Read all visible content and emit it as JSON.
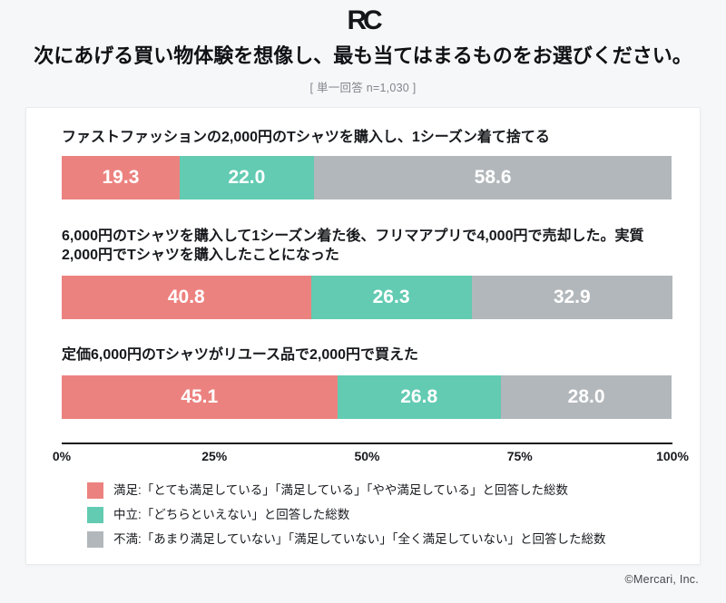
{
  "header": {
    "logo_text": "RC",
    "title": "次にあげる買い物体験を想像し、最も当てはまるものをお選びください。",
    "subtitle": "[ 単一回答 n=1,030 ]"
  },
  "chart_data": {
    "type": "bar",
    "variant": "horizontal-stacked-percentage",
    "categories": [
      "ファストファッションの2,000円のTシャツを購入し、1シーズン着て捨てる",
      "6,000円のTシャツを購入して1シーズン着た後、フリマアプリで4,000円で売却した。実質2,000円でTシャツを購入したことになった",
      "定価6,000円のTシャツがリユース品で2,000円で買えた"
    ],
    "series": [
      {
        "name": "満足",
        "color": "#ec827f",
        "values": [
          19.3,
          40.8,
          45.1
        ],
        "labels": [
          "19.3",
          "40.8",
          "45.1"
        ]
      },
      {
        "name": "中立",
        "color": "#62cbb2",
        "values": [
          22.0,
          26.3,
          26.8
        ],
        "labels": [
          "22.0",
          "26.3",
          "26.8"
        ]
      },
      {
        "name": "不満",
        "color": "#b2b7bb",
        "values": [
          58.6,
          32.9,
          28.0
        ],
        "labels": [
          "58.6",
          "32.9",
          "28.0"
        ]
      }
    ],
    "xlim": [
      0,
      100
    ],
    "x_ticks": [
      "0%",
      "25%",
      "50%",
      "75%",
      "100%"
    ],
    "grid": false,
    "legend_position": "bottom"
  },
  "legend": {
    "items": [
      {
        "color": "#ec827f",
        "label": "満足:「とても満足している」「満足している」「やや満足している」と回答した総数"
      },
      {
        "color": "#62cbb2",
        "label": "中立:「どちらといえない」と回答した総数"
      },
      {
        "color": "#b2b7bb",
        "label": "不満:「あまり満足していない」「満足していない」「全く満足していない」と回答した総数"
      }
    ]
  },
  "footer": {
    "copyright": "©Mercari, Inc."
  }
}
